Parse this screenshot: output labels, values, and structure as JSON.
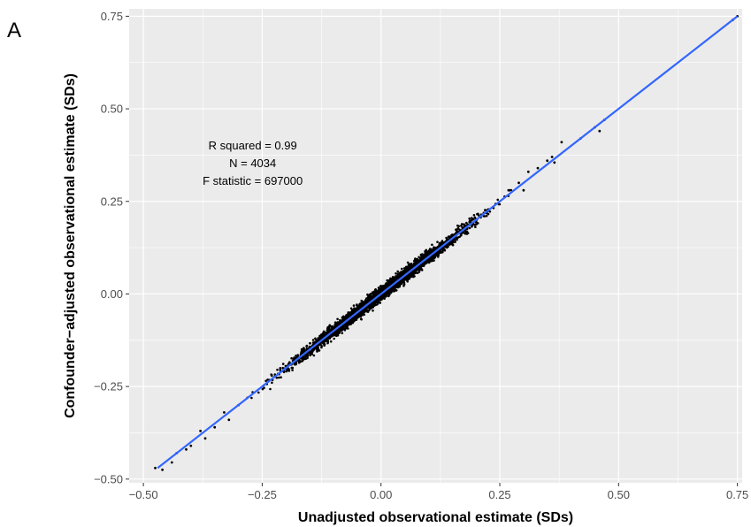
{
  "panel_label": "A",
  "chart_data": {
    "type": "scatter",
    "xlabel": "Unadjusted observational estimate (SDs)",
    "ylabel": "Confounder−adjusted observational estimate (SDs)",
    "xlim": [
      -0.53,
      0.76
    ],
    "ylim": [
      -0.51,
      0.77
    ],
    "x_ticks": [
      -0.5,
      -0.25,
      0.0,
      0.25,
      0.5,
      0.75
    ],
    "x_tick_labels": [
      "−0.50",
      "−0.25",
      "0.00",
      "0.25",
      "0.50",
      "0.75"
    ],
    "y_ticks": [
      -0.5,
      -0.25,
      0.0,
      0.25,
      0.5,
      0.75
    ],
    "y_tick_labels": [
      "−0.50",
      "−0.25",
      "0.00",
      "0.25",
      "0.50",
      "0.75"
    ],
    "grid": true,
    "background_color": "#ebebeb",
    "grid_color": "#ffffff",
    "point_color": "#000000",
    "fit_line_color": "#3366ff",
    "fit_line": {
      "x": [
        -0.47,
        0.75
      ],
      "y": [
        -0.47,
        0.75
      ]
    },
    "annotations": [
      "R squared = 0.99",
      "N = 4034",
      "F statistic = 697000"
    ],
    "annotation_anchor": {
      "x": -0.27,
      "y": 0.39
    },
    "n_points": 4034,
    "outlier_points": [
      {
        "x": -0.475,
        "y": -0.47
      },
      {
        "x": -0.46,
        "y": -0.475
      },
      {
        "x": -0.44,
        "y": -0.455
      },
      {
        "x": -0.43,
        "y": -0.43
      },
      {
        "x": -0.41,
        "y": -0.42
      },
      {
        "x": -0.4,
        "y": -0.41
      },
      {
        "x": -0.38,
        "y": -0.37
      },
      {
        "x": -0.37,
        "y": -0.39
      },
      {
        "x": -0.35,
        "y": -0.36
      },
      {
        "x": -0.33,
        "y": -0.32
      },
      {
        "x": -0.32,
        "y": -0.34
      },
      {
        "x": -0.3,
        "y": -0.3
      },
      {
        "x": 0.27,
        "y": 0.28
      },
      {
        "x": 0.29,
        "y": 0.3
      },
      {
        "x": 0.3,
        "y": 0.28
      },
      {
        "x": 0.31,
        "y": 0.33
      },
      {
        "x": 0.33,
        "y": 0.34
      },
      {
        "x": 0.35,
        "y": 0.36
      },
      {
        "x": 0.36,
        "y": 0.37
      },
      {
        "x": 0.365,
        "y": 0.355
      },
      {
        "x": 0.38,
        "y": 0.41
      },
      {
        "x": 0.42,
        "y": 0.42
      },
      {
        "x": 0.45,
        "y": 0.45
      },
      {
        "x": 0.46,
        "y": 0.44
      },
      {
        "x": 0.47,
        "y": 0.47
      },
      {
        "x": 0.74,
        "y": 0.74
      },
      {
        "x": 0.75,
        "y": 0.75
      }
    ]
  }
}
